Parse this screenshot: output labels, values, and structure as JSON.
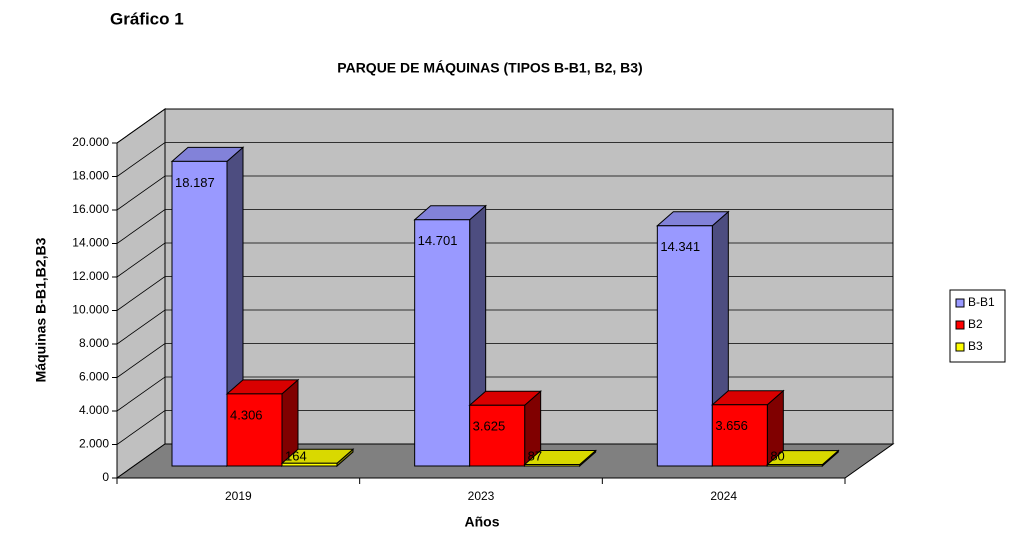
{
  "heading": "Gráfico 1",
  "chart_data": {
    "type": "bar3d",
    "title": "PARQUE DE MÁQUINAS (TIPOS B-B1, B2, B3)",
    "x_label": "Años",
    "y_label": "Máquinas B-B1,B2,B3",
    "categories": [
      "2019",
      "2023",
      "2024"
    ],
    "series": [
      {
        "name": "B-B1",
        "color": "#9999ff",
        "values": [
          18187,
          14701,
          14341
        ],
        "value_labels": [
          "18.187",
          "14.701",
          "14.341"
        ]
      },
      {
        "name": "B2",
        "color": "#ff0000",
        "values": [
          4306,
          3625,
          3656
        ],
        "value_labels": [
          "4.306",
          "3.625",
          "3.656"
        ]
      },
      {
        "name": "B3",
        "color": "#ffff00",
        "values": [
          164,
          87,
          80
        ]
      }
    ],
    "ylim": [
      0,
      20000
    ],
    "yticks": [
      0,
      {
        "value": 2000,
        "label": "2.000"
      },
      {
        "value": 4000,
        "label": "4.000"
      },
      {
        "value": 6000,
        "label": "6.000"
      },
      {
        "value": 8000,
        "label": "8.000"
      },
      {
        "value": 10000,
        "label": "10.000"
      },
      {
        "value": 12000,
        "label": "12.000"
      },
      {
        "value": 14000,
        "label": "14.000"
      },
      {
        "value": 16000,
        "label": "16.000"
      },
      {
        "value": 18000,
        "label": "18.000"
      },
      {
        "value": 20000,
        "label": "20.000"
      }
    ],
    "grid": true,
    "legend": "right"
  }
}
